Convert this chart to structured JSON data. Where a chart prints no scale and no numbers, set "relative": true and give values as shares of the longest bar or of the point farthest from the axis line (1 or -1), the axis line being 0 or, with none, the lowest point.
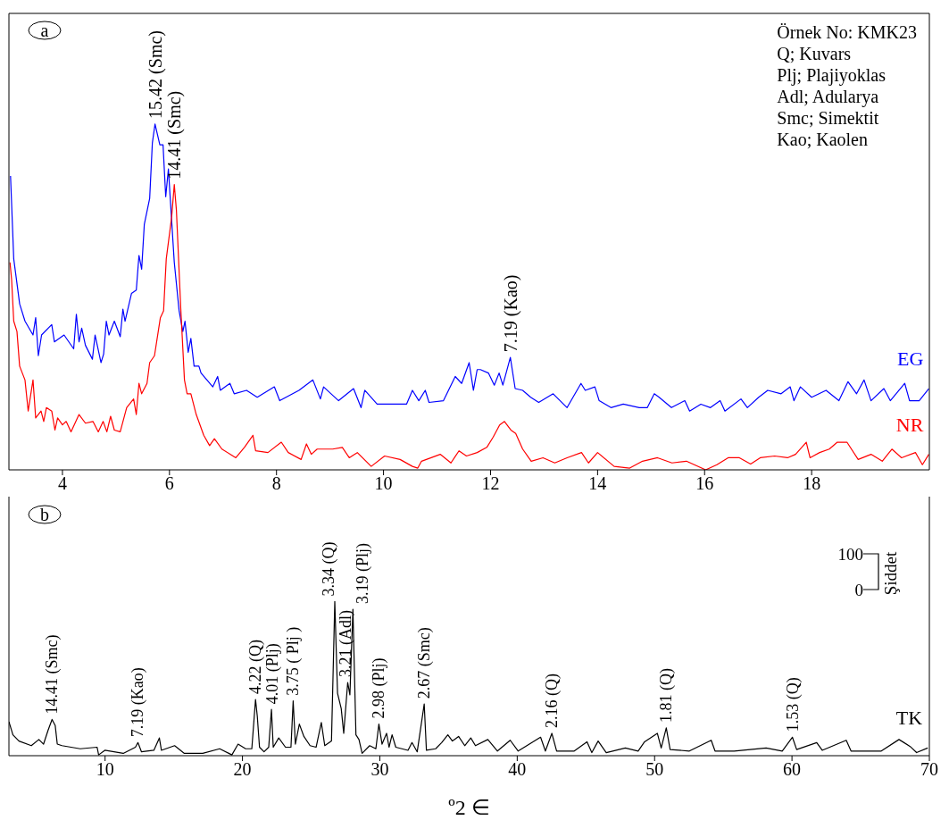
{
  "chart_data": [
    {
      "type": "line",
      "relative": true,
      "xlim": [
        3,
        20.2
      ],
      "xticks": [
        4,
        6,
        8,
        10,
        12,
        14,
        16,
        18
      ],
      "series": [
        {
          "name": "EG",
          "color": "#0000ff",
          "x": [
            3.03,
            3.09,
            3.2,
            3.3,
            3.45,
            3.5,
            3.55,
            3.61,
            3.8,
            3.85,
            4.03,
            4.21,
            4.26,
            4.31,
            4.36,
            4.43,
            4.56,
            4.61,
            4.72,
            4.77,
            4.82,
            4.87,
            4.97,
            5.08,
            5.13,
            5.17,
            5.29,
            5.38,
            5.43,
            5.48,
            5.53,
            5.63,
            5.68,
            5.73,
            5.82,
            5.88,
            5.93,
            5.98,
            6.09,
            6.18,
            6.25,
            6.29,
            6.35,
            6.4,
            6.46,
            6.55,
            6.59,
            6.81,
            6.9,
            6.95,
            7.13,
            7.21,
            7.44,
            7.64,
            7.96,
            8.06,
            8.42,
            8.68,
            8.82,
            8.88,
            9.16,
            9.44,
            9.58,
            9.65,
            9.88,
            10.14,
            10.43,
            10.54,
            10.66,
            10.78,
            10.85,
            11.12,
            11.34,
            11.46,
            11.6,
            11.68,
            11.75,
            11.81,
            11.96,
            12.07,
            12.16,
            12.23,
            12.37,
            12.46,
            12.6,
            12.75,
            12.9,
            13.17,
            13.43,
            13.69,
            13.77,
            13.95,
            14.03,
            14.25,
            14.48,
            14.78,
            14.93,
            15.06,
            15.15,
            15.38,
            15.63,
            15.72,
            15.93,
            16.11,
            16.29,
            16.38,
            16.68,
            16.8,
            17.01,
            17.18,
            17.43,
            17.6,
            17.67,
            17.79,
            18.0,
            18.27,
            18.51,
            18.68,
            18.84,
            18.98,
            19.11,
            19.35,
            19.47,
            19.74,
            19.83,
            20.01,
            20.19
          ],
          "values": [
            0.85,
            0.61,
            0.48,
            0.43,
            0.39,
            0.44,
            0.33,
            0.39,
            0.42,
            0.37,
            0.39,
            0.35,
            0.45,
            0.37,
            0.41,
            0.36,
            0.32,
            0.39,
            0.31,
            0.335,
            0.43,
            0.39,
            0.43,
            0.385,
            0.465,
            0.43,
            0.51,
            0.52,
            0.62,
            0.58,
            0.71,
            0.785,
            0.945,
            1.0,
            0.94,
            0.94,
            0.79,
            0.87,
            0.6,
            0.46,
            0.4,
            0.43,
            0.34,
            0.38,
            0.3,
            0.3,
            0.28,
            0.24,
            0.27,
            0.23,
            0.25,
            0.22,
            0.23,
            0.21,
            0.24,
            0.2,
            0.23,
            0.26,
            0.205,
            0.24,
            0.2,
            0.235,
            0.18,
            0.23,
            0.19,
            0.19,
            0.19,
            0.23,
            0.2,
            0.23,
            0.195,
            0.2,
            0.27,
            0.25,
            0.31,
            0.23,
            0.29,
            0.29,
            0.28,
            0.245,
            0.28,
            0.245,
            0.325,
            0.235,
            0.23,
            0.21,
            0.195,
            0.22,
            0.18,
            0.25,
            0.23,
            0.24,
            0.2,
            0.18,
            0.19,
            0.18,
            0.18,
            0.22,
            0.21,
            0.18,
            0.2,
            0.17,
            0.19,
            0.18,
            0.2,
            0.17,
            0.205,
            0.18,
            0.21,
            0.23,
            0.22,
            0.24,
            0.2,
            0.24,
            0.21,
            0.23,
            0.2,
            0.255,
            0.22,
            0.26,
            0.2,
            0.235,
            0.2,
            0.25,
            0.2,
            0.2,
            0.235
          ]
        },
        {
          "name": "NR",
          "color": "#ff0000",
          "x": [
            3.02,
            3.05,
            3.09,
            3.15,
            3.2,
            3.3,
            3.36,
            3.45,
            3.5,
            3.6,
            3.65,
            3.7,
            3.8,
            3.86,
            3.91,
            4.0,
            4.07,
            4.16,
            4.31,
            4.43,
            4.57,
            4.67,
            4.76,
            4.83,
            4.9,
            4.97,
            5.08,
            5.2,
            5.33,
            5.38,
            5.43,
            5.48,
            5.58,
            5.63,
            5.72,
            5.83,
            5.89,
            5.94,
            6.04,
            6.09,
            6.13,
            6.21,
            6.28,
            6.33,
            6.4,
            6.5,
            6.64,
            6.75,
            6.84,
            6.98,
            7.24,
            7.4,
            7.56,
            7.61,
            7.84,
            8.09,
            8.22,
            8.46,
            8.56,
            8.65,
            8.76,
            9.05,
            9.23,
            9.36,
            9.51,
            9.77,
            10.02,
            10.31,
            10.54,
            10.64,
            10.71,
            11.06,
            11.26,
            11.41,
            11.55,
            11.75,
            11.93,
            12.05,
            12.17,
            12.26,
            12.38,
            12.47,
            12.6,
            12.76,
            12.98,
            13.2,
            13.43,
            13.7,
            13.83,
            14.0,
            14.31,
            14.6,
            14.84,
            15.12,
            15.39,
            15.66,
            16.02,
            16.23,
            16.44,
            16.65,
            16.86,
            17.04,
            17.31,
            17.55,
            17.7,
            17.9,
            17.97,
            18.15,
            18.33,
            18.48,
            18.66,
            18.87,
            19.11,
            19.32,
            19.5,
            19.68,
            19.94,
            20.07,
            20.19
          ],
          "values": [
            0.6,
            0.55,
            0.43,
            0.4,
            0.3,
            0.26,
            0.17,
            0.26,
            0.15,
            0.17,
            0.14,
            0.18,
            0.17,
            0.115,
            0.15,
            0.13,
            0.14,
            0.11,
            0.16,
            0.135,
            0.14,
            0.11,
            0.14,
            0.11,
            0.155,
            0.115,
            0.11,
            0.18,
            0.205,
            0.16,
            0.25,
            0.22,
            0.25,
            0.31,
            0.33,
            0.44,
            0.46,
            0.61,
            0.73,
            0.825,
            0.75,
            0.47,
            0.26,
            0.22,
            0.22,
            0.16,
            0.1,
            0.07,
            0.09,
            0.06,
            0.035,
            0.065,
            0.1,
            0.055,
            0.05,
            0.08,
            0.05,
            0.03,
            0.075,
            0.045,
            0.06,
            0.06,
            0.065,
            0.035,
            0.05,
            0.01,
            0.04,
            0.03,
            0.01,
            0.005,
            0.025,
            0.045,
            0.02,
            0.055,
            0.04,
            0.05,
            0.065,
            0.095,
            0.13,
            0.14,
            0.115,
            0.105,
            0.06,
            0.025,
            0.035,
            0.02,
            0.035,
            0.05,
            0.02,
            0.05,
            0.01,
            0.005,
            0.025,
            0.035,
            0.02,
            0.025,
            0.0,
            0.015,
            0.035,
            0.035,
            0.017,
            0.035,
            0.04,
            0.035,
            0.045,
            0.08,
            0.035,
            0.05,
            0.06,
            0.08,
            0.08,
            0.03,
            0.045,
            0.025,
            0.06,
            0.035,
            0.05,
            0.015,
            0.045
          ]
        }
      ],
      "annotations": [
        "a",
        "Örnek No: KMK23",
        "Q; Kuvars",
        "Plj; Plajiyoklas",
        "Adl; Adularya",
        "Smc; Simektit",
        "Kao; Kaolen",
        {
          "text": "15.42 (Smc)",
          "x": 5.73,
          "y": 1.0
        },
        {
          "text": "14.41 (Smc)",
          "x": 6.09,
          "y": 0.825
        },
        {
          "text": "7.19 (Kao)",
          "x": 12.37,
          "y": 0.325
        }
      ]
    },
    {
      "type": "line",
      "relative": true,
      "xlim": [
        3,
        70
      ],
      "xticks": [
        10,
        20,
        30,
        40,
        50,
        60,
        70
      ],
      "xlabel": "º2 ∈",
      "series": [
        {
          "name": "TK",
          "color": "#000000",
          "x": [
            3.0,
            3.29,
            3.73,
            4.63,
            5.18,
            5.52,
            5.85,
            6.14,
            6.37,
            6.52,
            6.86,
            8.19,
            9.42,
            9.53,
            9.98,
            11.32,
            12.21,
            12.39,
            12.65,
            13.55,
            13.95,
            14.1,
            15.06,
            15.77,
            17.11,
            18.34,
            19.23,
            19.68,
            20.23,
            20.68,
            20.95,
            21.08,
            21.24,
            21.57,
            21.91,
            22.11,
            22.24,
            22.64,
            23.13,
            23.53,
            23.69,
            23.85,
            24.14,
            24.47,
            24.92,
            25.36,
            25.74,
            25.99,
            26.48,
            26.72,
            26.92,
            27.19,
            27.37,
            27.66,
            27.82,
            28.04,
            28.26,
            28.48,
            28.71,
            29.26,
            29.71,
            29.93,
            30.16,
            30.49,
            30.67,
            30.89,
            31.16,
            32.05,
            32.34,
            32.72,
            33.23,
            33.39,
            34.06,
            34.5,
            34.95,
            35.28,
            35.73,
            36.18,
            36.62,
            36.96,
            37.86,
            38.56,
            39.49,
            40.07,
            41.07,
            41.7,
            42.05,
            42.52,
            42.87,
            44.15,
            45.08,
            45.43,
            45.89,
            46.48,
            47.87,
            48.8,
            49.27,
            50.2,
            50.48,
            50.85,
            51.13,
            52.53,
            54.12,
            54.4,
            55.79,
            58.12,
            59.29,
            60.03,
            60.34,
            61.8,
            62.2,
            63.95,
            64.3,
            66.5,
            67.79,
            68.6,
            69.07,
            69.88
          ],
          "values": [
            0.22,
            0.135,
            0.095,
            0.065,
            0.105,
            0.075,
            0.165,
            0.235,
            0.195,
            0.075,
            0.065,
            0.045,
            0.055,
            0.005,
            0.035,
            0.015,
            0.055,
            0.085,
            0.025,
            0.035,
            0.115,
            0.035,
            0.065,
            0.015,
            0.015,
            0.045,
            0.005,
            0.075,
            0.045,
            0.045,
            0.365,
            0.255,
            0.055,
            0.025,
            0.055,
            0.3,
            0.055,
            0.115,
            0.055,
            0.055,
            0.355,
            0.075,
            0.205,
            0.125,
            0.065,
            0.055,
            0.215,
            0.065,
            0.095,
            1.0,
            0.405,
            0.305,
            0.145,
            0.475,
            0.395,
            0.95,
            0.135,
            0.105,
            0.015,
            0.065,
            0.045,
            0.205,
            0.075,
            0.145,
            0.055,
            0.135,
            0.055,
            0.035,
            0.085,
            0.025,
            0.335,
            0.035,
            0.045,
            0.085,
            0.135,
            0.095,
            0.125,
            0.065,
            0.115,
            0.065,
            0.105,
            0.03,
            0.1,
            0.03,
            0.085,
            0.12,
            0.03,
            0.145,
            0.03,
            0.03,
            0.09,
            0.02,
            0.095,
            0.02,
            0.05,
            0.03,
            0.09,
            0.145,
            0.05,
            0.18,
            0.04,
            0.03,
            0.1,
            0.03,
            0.03,
            0.05,
            0.03,
            0.12,
            0.04,
            0.085,
            0.035,
            0.1,
            0.03,
            0.03,
            0.105,
            0.06,
            0.02,
            0.05
          ]
        }
      ],
      "annotations": [
        "b",
        "100",
        "0",
        "Şiddet",
        {
          "text": "14.41 (Smc)",
          "x": 6.14,
          "y": 0.235
        },
        {
          "text": "7.19 (Kao)",
          "x": 12.39,
          "y": 0.085
        },
        {
          "text": "4.22 (Q)",
          "x": 20.95,
          "y": 0.365
        },
        {
          "text": "4.01 (Plj)",
          "x": 22.11,
          "y": 0.3
        },
        {
          "text": "3.75 ( Plj )",
          "x": 23.69,
          "y": 0.355
        },
        {
          "text": "3.34 (Q)",
          "x": 26.72,
          "y": 1.0
        },
        {
          "text": "3.21 (Adl)",
          "x": 27.66,
          "y": 0.475
        },
        {
          "text": "3.19 (Plj)",
          "x": 28.04,
          "y": 0.95
        },
        {
          "text": "2.98 (Plj)",
          "x": 29.93,
          "y": 0.205
        },
        {
          "text": "2.67 (Smc)",
          "x": 33.23,
          "y": 0.335
        },
        {
          "text": "2.16 (Q)",
          "x": 42.52,
          "y": 0.145
        },
        {
          "text": "1.81 (Q)",
          "x": 50.85,
          "y": 0.18
        },
        {
          "text": "1.53 (Q)",
          "x": 60.03,
          "y": 0.12
        }
      ]
    }
  ]
}
